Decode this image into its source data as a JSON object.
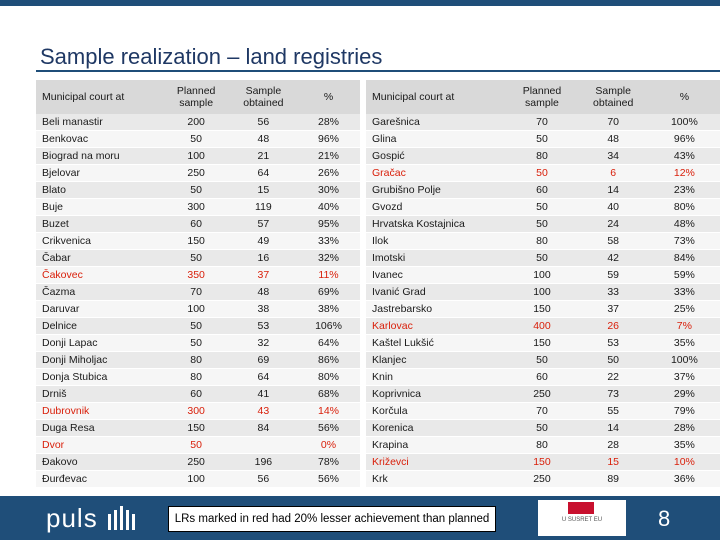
{
  "title": "Sample realization – land registries",
  "headers": {
    "court": "Municipal court at",
    "planned": "Planned sample",
    "obtained": "Sample obtained",
    "pct": "%"
  },
  "left_rows": [
    {
      "court": "Beli manastir",
      "planned": "200",
      "obtained": "56",
      "pct": "28%",
      "red": false
    },
    {
      "court": "Benkovac",
      "planned": "50",
      "obtained": "48",
      "pct": "96%",
      "red": false
    },
    {
      "court": "Biograd na moru",
      "planned": "100",
      "obtained": "21",
      "pct": "21%",
      "red": false
    },
    {
      "court": "Bjelovar",
      "planned": "250",
      "obtained": "64",
      "pct": "26%",
      "red": false
    },
    {
      "court": "Blato",
      "planned": "50",
      "obtained": "15",
      "pct": "30%",
      "red": false
    },
    {
      "court": "Buje",
      "planned": "300",
      "obtained": "119",
      "pct": "40%",
      "red": false
    },
    {
      "court": "Buzet",
      "planned": "60",
      "obtained": "57",
      "pct": "95%",
      "red": false
    },
    {
      "court": "Crikvenica",
      "planned": "150",
      "obtained": "49",
      "pct": "33%",
      "red": false
    },
    {
      "court": "Čabar",
      "planned": "50",
      "obtained": "16",
      "pct": "32%",
      "red": false
    },
    {
      "court": "Čakovec",
      "planned": "350",
      "obtained": "37",
      "pct": "11%",
      "red": true
    },
    {
      "court": "Čazma",
      "planned": "70",
      "obtained": "48",
      "pct": "69%",
      "red": false
    },
    {
      "court": "Daruvar",
      "planned": "100",
      "obtained": "38",
      "pct": "38%",
      "red": false
    },
    {
      "court": "Delnice",
      "planned": "50",
      "obtained": "53",
      "pct": "106%",
      "red": false
    },
    {
      "court": "Donji Lapac",
      "planned": "50",
      "obtained": "32",
      "pct": "64%",
      "red": false
    },
    {
      "court": "Donji Miholjac",
      "planned": "80",
      "obtained": "69",
      "pct": "86%",
      "red": false
    },
    {
      "court": "Donja Stubica",
      "planned": "80",
      "obtained": "64",
      "pct": "80%",
      "red": false
    },
    {
      "court": "Drniš",
      "planned": "60",
      "obtained": "41",
      "pct": "68%",
      "red": false
    },
    {
      "court": "Dubrovnik",
      "planned": "300",
      "obtained": "43",
      "pct": "14%",
      "red": true
    },
    {
      "court": "Duga Resa",
      "planned": "150",
      "obtained": "84",
      "pct": "56%",
      "red": false
    },
    {
      "court": "Dvor",
      "planned": "50",
      "obtained": "",
      "pct": "0%",
      "red": true
    },
    {
      "court": "Đakovo",
      "planned": "250",
      "obtained": "196",
      "pct": "78%",
      "red": false
    },
    {
      "court": "Đurđevac",
      "planned": "100",
      "obtained": "56",
      "pct": "56%",
      "red": false
    }
  ],
  "right_rows": [
    {
      "court": "Garešnica",
      "planned": "70",
      "obtained": "70",
      "pct": "100%",
      "red": false
    },
    {
      "court": "Glina",
      "planned": "50",
      "obtained": "48",
      "pct": "96%",
      "red": false
    },
    {
      "court": "Gospić",
      "planned": "80",
      "obtained": "34",
      "pct": "43%",
      "red": false
    },
    {
      "court": "Gračac",
      "planned": "50",
      "obtained": "6",
      "pct": "12%",
      "red": true
    },
    {
      "court": "Grubišno Polje",
      "planned": "60",
      "obtained": "14",
      "pct": "23%",
      "red": false
    },
    {
      "court": "Gvozd",
      "planned": "50",
      "obtained": "40",
      "pct": "80%",
      "red": false
    },
    {
      "court": "Hrvatska Kostajnica",
      "planned": "50",
      "obtained": "24",
      "pct": "48%",
      "red": false
    },
    {
      "court": "Ilok",
      "planned": "80",
      "obtained": "58",
      "pct": "73%",
      "red": false
    },
    {
      "court": "Imotski",
      "planned": "50",
      "obtained": "42",
      "pct": "84%",
      "red": false
    },
    {
      "court": "Ivanec",
      "planned": "100",
      "obtained": "59",
      "pct": "59%",
      "red": false
    },
    {
      "court": "Ivanić Grad",
      "planned": "100",
      "obtained": "33",
      "pct": "33%",
      "red": false
    },
    {
      "court": "Jastrebarsko",
      "planned": "150",
      "obtained": "37",
      "pct": "25%",
      "red": false
    },
    {
      "court": "Karlovac",
      "planned": "400",
      "obtained": "26",
      "pct": "7%",
      "red": true
    },
    {
      "court": "Kaštel Lukšić",
      "planned": "150",
      "obtained": "53",
      "pct": "35%",
      "red": false
    },
    {
      "court": "Klanjec",
      "planned": "50",
      "obtained": "50",
      "pct": "100%",
      "red": false
    },
    {
      "court": "Knin",
      "planned": "60",
      "obtained": "22",
      "pct": "37%",
      "red": false
    },
    {
      "court": "Koprivnica",
      "planned": "250",
      "obtained": "73",
      "pct": "29%",
      "red": false
    },
    {
      "court": "Korčula",
      "planned": "70",
      "obtained": "55",
      "pct": "79%",
      "red": false
    },
    {
      "court": "Korenica",
      "planned": "50",
      "obtained": "14",
      "pct": "28%",
      "red": false
    },
    {
      "court": "Krapina",
      "planned": "80",
      "obtained": "28",
      "pct": "35%",
      "red": false
    },
    {
      "court": "Križevci",
      "planned": "150",
      "obtained": "15",
      "pct": "10%",
      "red": true
    },
    {
      "court": "Krk",
      "planned": "250",
      "obtained": "89",
      "pct": "36%",
      "red": false
    }
  ],
  "footer": {
    "brand": "puls",
    "note": "LRs marked in red had 20% lesser achievement than planned",
    "logo_text": "U SUSRET EU",
    "page": "8"
  },
  "colors": {
    "header_blue": "#1f4e79",
    "title": "#1f3864",
    "red": "#d9200b",
    "row_shade": "#e9e9e9"
  }
}
